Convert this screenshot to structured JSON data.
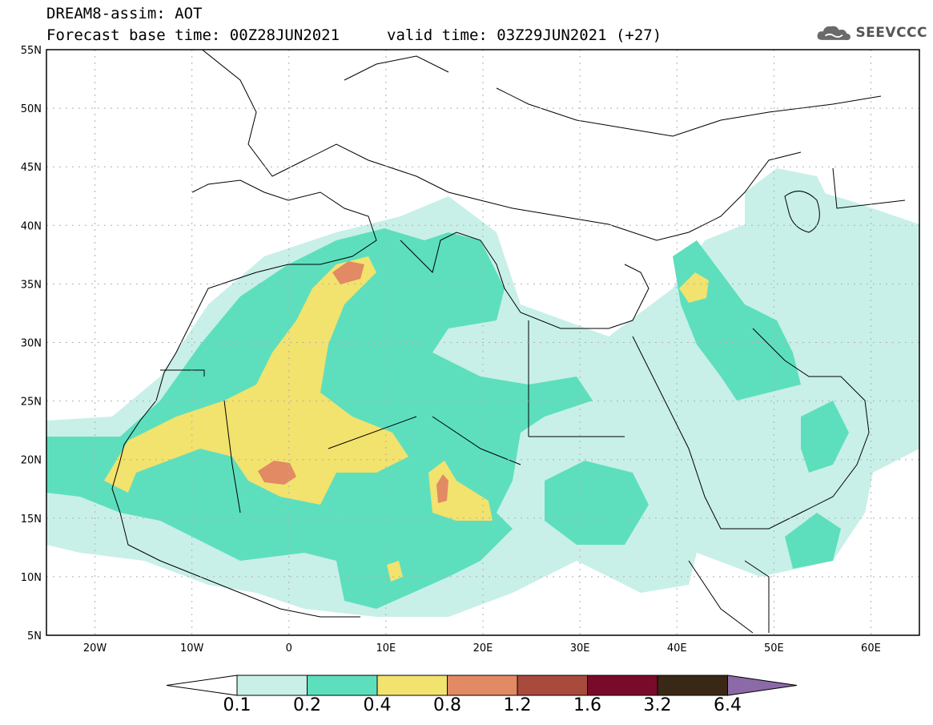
{
  "header": {
    "title": "DREAM8-assim: AOT",
    "base_time": "Forecast base time: 00Z28JUN2021",
    "valid_time": "valid time: 03Z29JUN2021 (+27)"
  },
  "logo": {
    "text": "SEEVCCC",
    "icon": "cloud-icon"
  },
  "axes": {
    "lat_labels": [
      "55N",
      "50N",
      "45N",
      "40N",
      "35N",
      "30N",
      "25N",
      "20N",
      "15N",
      "10N",
      "5N"
    ],
    "lon_labels": [
      "20W",
      "10W",
      "0",
      "10E",
      "20E",
      "30E",
      "40E",
      "50E",
      "60E"
    ],
    "lat_range": [
      5,
      55
    ],
    "lon_range": [
      -25,
      65
    ],
    "grid": true
  },
  "colorbar": {
    "labels": [
      "0.1",
      "0.2",
      "0.4",
      "0.8",
      "1.2",
      "1.6",
      "3.2",
      "6.4"
    ],
    "colors": [
      "#ffffff",
      "#c8f0e8",
      "#5ddfbd",
      "#f2e26e",
      "#e28a64",
      "#a84a3c",
      "#7a0a2a",
      "#3a2816",
      "#8c6aa8"
    ]
  }
}
